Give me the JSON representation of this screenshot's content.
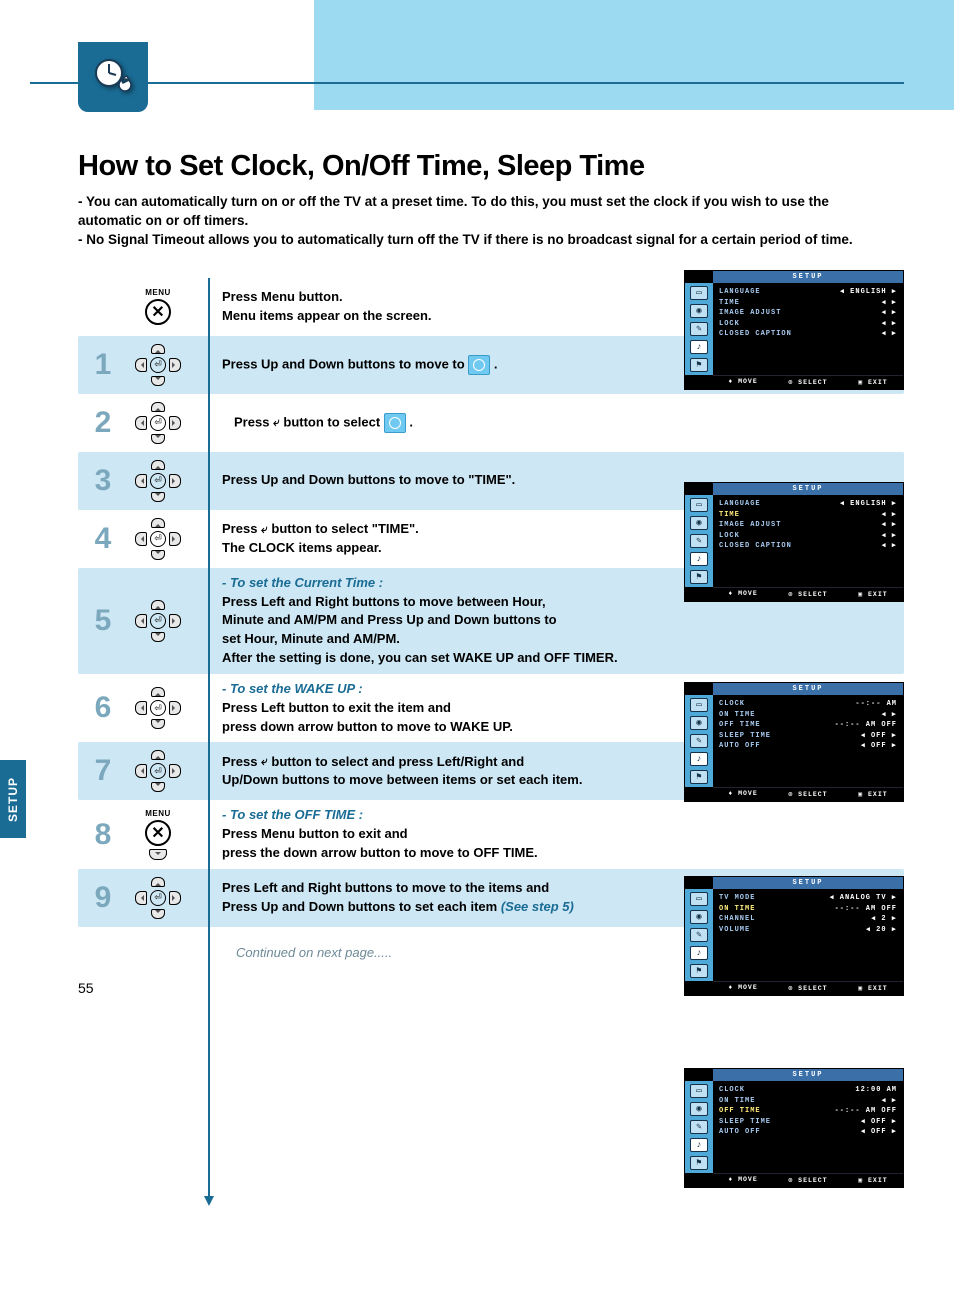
{
  "colors": {
    "band": "#9cdaf2",
    "accent": "#1a6c95",
    "shade": "#cde7f4",
    "numGrey": "#7ba8bd",
    "osdBlue": "#4ea8d8",
    "osdHeader": "#3a6fa8",
    "osdText": "#a7caf0"
  },
  "sideTab": "SETUP",
  "pageNumber": "55",
  "title": "How to Set Clock, On/Off Time, Sleep Time",
  "intro": {
    "line1": "- You can automatically turn on or off the TV at a preset time. To do this, you must set the clock if you wish to use the",
    "line1b": "  automatic on or off timers.",
    "line2": "- No Signal Timeout allows you to automatically turn off the TV if there is no broadcast signal for a certain period of time."
  },
  "continued": "Continued on next page.....",
  "menuLabel": "MENU",
  "steps": {
    "s0": {
      "a": "Press Menu button.",
      "b": "Menu items appear on the screen."
    },
    "s1": {
      "num": "1",
      "a": "Press Up and Down buttons to move to ",
      "tail": " ."
    },
    "s2": {
      "num": "2",
      "a": "Press ",
      "mid": " button to select ",
      "tail": " ."
    },
    "s3": {
      "num": "3",
      "a": "Press Up and Down buttons to move to \"TIME\"."
    },
    "s4": {
      "num": "4",
      "a": "Press ",
      "mid": " button to select \"TIME\".",
      "b": "The CLOCK items appear."
    },
    "s5": {
      "num": "5",
      "sub": "- To set the Current Time :",
      "a": "Press Left and Right buttons to move between Hour,",
      "b": "Minute and AM/PM and Press Up and Down buttons to",
      "c": "set Hour, Minute and AM/PM.",
      "d": "After the setting is done, you can set WAKE UP and OFF TIMER."
    },
    "s6": {
      "num": "6",
      "sub": "- To set the WAKE UP :",
      "a": "Press Left button to exit the item and",
      "b": "press down arrow button to move to WAKE UP."
    },
    "s7": {
      "num": "7",
      "a": "Press ",
      "mid": "  button to select and press Left/Right and",
      "b": "Up/Down buttons to move between items or set each item."
    },
    "s8": {
      "num": "8",
      "sub": "- To set the OFF TIME :",
      "a": "Press Menu button to exit and",
      "b": "press the down arrow button to move to OFF TIME."
    },
    "s9": {
      "num": "9",
      "a": "Pres Left and Right buttons to move to the items and",
      "b": "Press Up and Down buttons to set each item ",
      "ref": "(See step 5)"
    }
  },
  "osd": {
    "title": "SETUP",
    "foot": {
      "move": "♦ MOVE",
      "select": "⊙ SELECT",
      "exit": "▣ EXIT"
    },
    "screen1": {
      "rows": [
        {
          "k": "LANGUAGE",
          "v": "◀  ENGLISH  ▶"
        },
        {
          "k": "TIME",
          "v": "◀ ▶"
        },
        {
          "k": "IMAGE ADJUST",
          "v": "◀ ▶"
        },
        {
          "k": "LOCK",
          "v": "◀ ▶"
        },
        {
          "k": "CLOSED CAPTION",
          "v": "◀ ▶"
        }
      ]
    },
    "screen2": {
      "rows": [
        {
          "k": "LANGUAGE",
          "v": "◀  ENGLISH  ▶"
        },
        {
          "k": "TIME",
          "v": "◀ ▶",
          "hl": true
        },
        {
          "k": "IMAGE ADJUST",
          "v": "◀ ▶"
        },
        {
          "k": "LOCK",
          "v": "◀ ▶"
        },
        {
          "k": "CLOSED CAPTION",
          "v": "◀ ▶"
        }
      ]
    },
    "screen3": {
      "rows": [
        {
          "k": "CLOCK",
          "v": "--:-- AM"
        },
        {
          "k": "ON TIME",
          "v": "◀ ▶"
        },
        {
          "k": "OFF TIME",
          "v": "--:-- AM OFF"
        },
        {
          "k": "SLEEP TIME",
          "v": "◀   OFF   ▶"
        },
        {
          "k": "AUTO OFF",
          "v": "◀   OFF   ▶"
        }
      ]
    },
    "screen4": {
      "rows": [
        {
          "k": "TV MODE",
          "v": "◀ ANALOG TV ▶"
        },
        {
          "k": "ON TIME",
          "v": "--:-- AM OFF",
          "hl": true
        },
        {
          "k": "CHANNEL",
          "v": "◀     2     ▶"
        },
        {
          "k": "VOLUME",
          "v": "◀    20    ▶"
        }
      ]
    },
    "screen5": {
      "rows": [
        {
          "k": "CLOCK",
          "v": "12:00  AM"
        },
        {
          "k": "ON TIME",
          "v": "◀ ▶"
        },
        {
          "k": "OFF TIME",
          "v": "--:-- AM OFF",
          "hl": true
        },
        {
          "k": "SLEEP TIME",
          "v": "◀   OFF   ▶"
        },
        {
          "k": "AUTO OFF",
          "v": "◀   OFF   ▶"
        }
      ]
    }
  }
}
